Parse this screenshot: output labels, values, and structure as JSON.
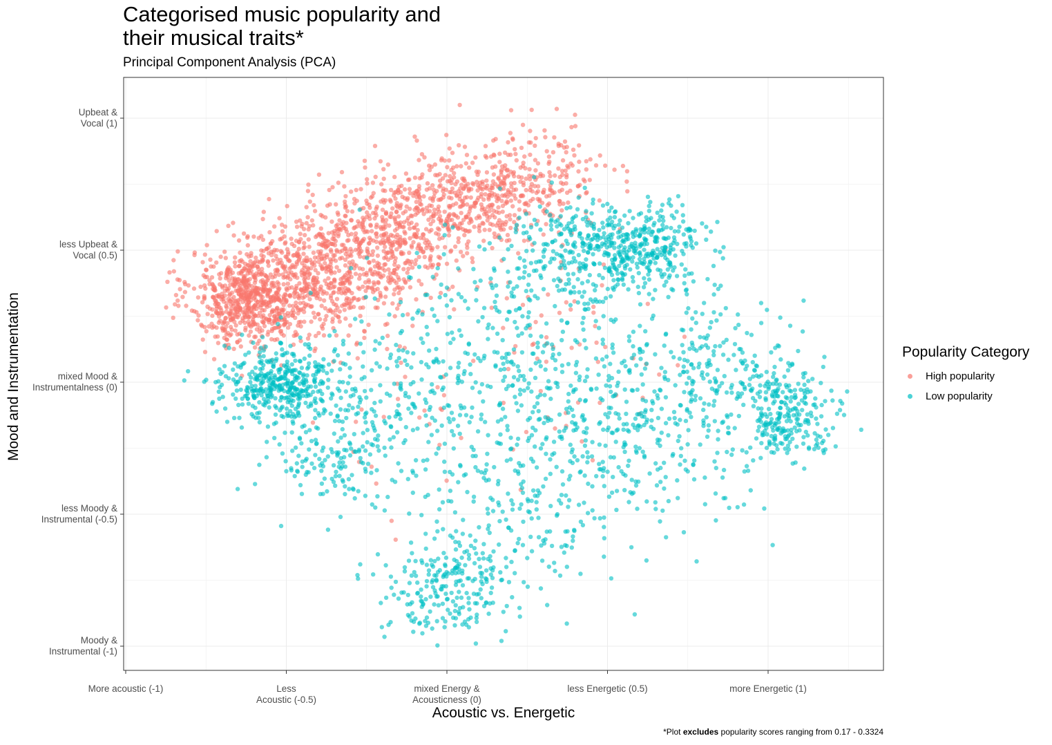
{
  "chart_data": {
    "type": "scatter",
    "title": "Categorised music popularity and\ntheir musical traits*",
    "subtitle": "Principal Component Analysis (PCA)",
    "xlabel": "Acoustic vs. Energetic",
    "ylabel": "Mood and Instrumentation",
    "xlim": [
      -1.05,
      1.31
    ],
    "ylim": [
      -1.06,
      1.16
    ],
    "xticks": [
      {
        "value": -1,
        "label": "More acoustic (-1)"
      },
      {
        "value": -0.5,
        "label": "Less\nAcoustic (-0.5)"
      },
      {
        "value": 0,
        "label": "mixed Energy &\nAcousticness (0)"
      },
      {
        "value": 0.5,
        "label": "less Energetic (0.5)"
      },
      {
        "value": 1,
        "label": "more Energetic (1)"
      }
    ],
    "yticks": [
      {
        "value": 1,
        "label": "Upbeat &\nVocal (1)"
      },
      {
        "value": 0.5,
        "label": "less Upbeat &\nVocal (0.5)"
      },
      {
        "value": 0,
        "label": "mixed Mood &\nInstrumentalness (0)"
      },
      {
        "value": -0.5,
        "label": "less Moody &\nInstrumental (-0.5)"
      },
      {
        "value": -1,
        "label": "Moody &\nInstrumental (-1)"
      }
    ],
    "grid": true,
    "legend_title": "Popularity Category",
    "legend_position": "right",
    "caption_prefix": "*Plot ",
    "caption_bold": "excludes",
    "caption_suffix": " popularity scores ranging from 0.17 - 0.3324",
    "series": [
      {
        "name": "High popularity",
        "color": "#F8766D",
        "clusters": [
          {
            "cx": -0.62,
            "cy": 0.32,
            "sx": 0.09,
            "sy": 0.09,
            "n": 620
          },
          {
            "cx": -0.4,
            "cy": 0.4,
            "sx": 0.12,
            "sy": 0.12,
            "n": 560
          },
          {
            "cx": -0.18,
            "cy": 0.55,
            "sx": 0.13,
            "sy": 0.11,
            "n": 480
          },
          {
            "cx": 0.07,
            "cy": 0.68,
            "sx": 0.12,
            "sy": 0.1,
            "n": 360
          },
          {
            "cx": 0.28,
            "cy": 0.78,
            "sx": 0.12,
            "sy": 0.09,
            "n": 180
          },
          {
            "cx": 0.36,
            "cy": 0.15,
            "sx": 0.22,
            "sy": 0.22,
            "n": 70
          },
          {
            "cx": 0.0,
            "cy": -0.2,
            "sx": 0.18,
            "sy": 0.18,
            "n": 25
          }
        ],
        "extra_points": [
          [
            -0.85,
            0.42
          ],
          [
            -0.87,
            0.38
          ],
          [
            -0.1,
            0.93
          ],
          [
            0.04,
            1.05
          ],
          [
            0.2,
            1.03
          ],
          [
            0.4,
            0.97
          ],
          [
            0.56,
            0.76
          ],
          [
            0.31,
            0.17
          ],
          [
            0.6,
            -0.12
          ]
        ]
      },
      {
        "name": "Low popularity",
        "color": "#00BFC4",
        "clusters": [
          {
            "cx": -0.52,
            "cy": 0.0,
            "sx": 0.09,
            "sy": 0.07,
            "n": 420
          },
          {
            "cx": -0.35,
            "cy": -0.28,
            "sx": 0.1,
            "sy": 0.09,
            "n": 120
          },
          {
            "cx": 0.0,
            "cy": -0.78,
            "sx": 0.1,
            "sy": 0.1,
            "n": 220
          },
          {
            "cx": 0.18,
            "cy": -0.55,
            "sx": 0.14,
            "sy": 0.14,
            "n": 120
          },
          {
            "cx": 0.6,
            "cy": 0.52,
            "sx": 0.11,
            "sy": 0.07,
            "n": 380
          },
          {
            "cx": 0.36,
            "cy": 0.5,
            "sx": 0.12,
            "sy": 0.1,
            "n": 180
          },
          {
            "cx": 1.06,
            "cy": -0.12,
            "sx": 0.08,
            "sy": 0.08,
            "n": 230
          },
          {
            "cx": 0.5,
            "cy": -0.2,
            "sx": 0.22,
            "sy": 0.2,
            "n": 380
          },
          {
            "cx": 0.85,
            "cy": 0.05,
            "sx": 0.14,
            "sy": 0.16,
            "n": 220
          },
          {
            "cx": 0.2,
            "cy": 0.1,
            "sx": 0.25,
            "sy": 0.22,
            "n": 300
          },
          {
            "cx": -0.12,
            "cy": -0.1,
            "sx": 0.2,
            "sy": 0.18,
            "n": 220
          }
        ],
        "extra_points": [
          [
            1.29,
            -0.18
          ],
          [
            -0.72,
            0.0
          ],
          [
            0.09,
            -0.99
          ],
          [
            0.17,
            -0.98
          ],
          [
            -0.27,
            -0.69
          ],
          [
            0.3,
            -0.6
          ]
        ]
      }
    ]
  }
}
